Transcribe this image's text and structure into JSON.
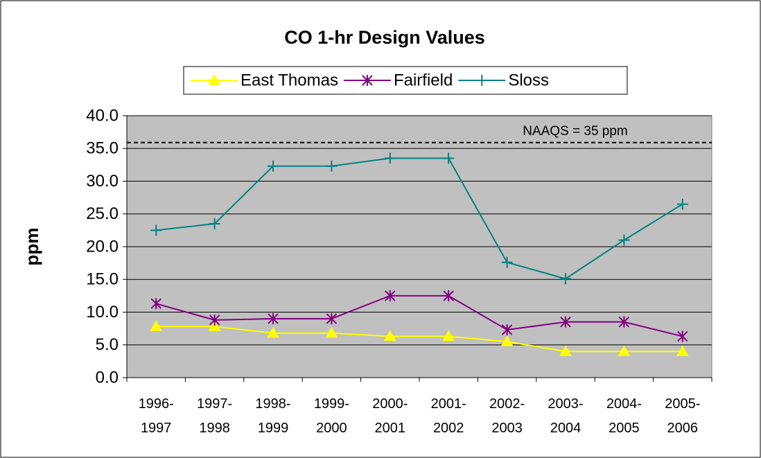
{
  "chart_data": {
    "type": "line",
    "title": "CO 1-hr Design Values",
    "y_label": "ppm",
    "categories": [
      "1996-\n1997",
      "1997-\n1998",
      "1998-\n1999",
      "1999-\n2000",
      "2000-\n2001",
      "2001-\n2002",
      "2002-\n2003",
      "2003-\n2004",
      "2004-\n2005",
      "2005-\n2006"
    ],
    "series": [
      {
        "name": "East Thomas",
        "color": "#ffff00",
        "marker": "triangle",
        "values": [
          7.8,
          7.8,
          6.8,
          6.8,
          6.3,
          6.3,
          5.5,
          4.0,
          4.0,
          4.0
        ]
      },
      {
        "name": "Fairfield",
        "color": "#800080",
        "marker": "asterisk",
        "values": [
          11.3,
          8.8,
          9.0,
          9.0,
          12.5,
          12.5,
          7.3,
          8.5,
          8.5,
          6.3
        ]
      },
      {
        "name": "Sloss",
        "color": "#008080",
        "marker": "plus",
        "values": [
          22.5,
          23.5,
          32.3,
          32.3,
          33.5,
          33.5,
          17.6,
          15.1,
          21.0,
          26.5
        ]
      }
    ],
    "ylim": [
      0,
      40
    ],
    "yticks": [
      {
        "value": 0,
        "label": "0.0"
      },
      {
        "value": 5,
        "label": "5.0"
      },
      {
        "value": 10,
        "label": "10.0"
      },
      {
        "value": 15,
        "label": "15.0"
      },
      {
        "value": 20,
        "label": "20.0"
      },
      {
        "value": 25,
        "label": "25.0"
      },
      {
        "value": 30,
        "label": "30.0"
      },
      {
        "value": 35,
        "label": "35.0"
      },
      {
        "value": 40,
        "label": "40.0"
      }
    ],
    "grid": true,
    "plot_background": "#c0c0c0",
    "legend": "top",
    "reference_line": {
      "value": 35.9,
      "annotation": "NAAQS = 35 ppm"
    }
  }
}
